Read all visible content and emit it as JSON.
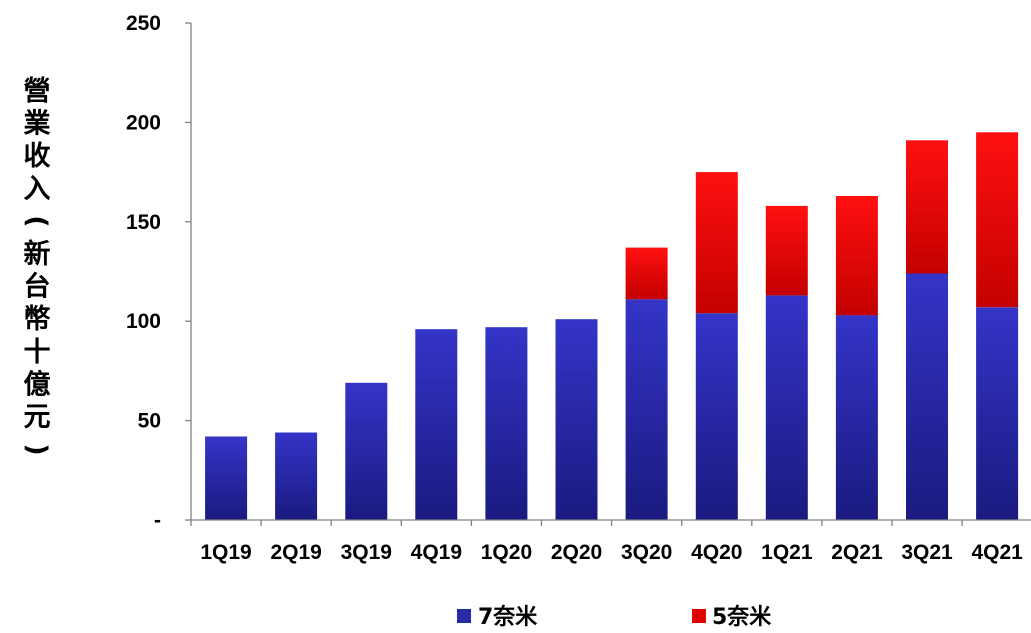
{
  "chart_data": {
    "type": "bar",
    "stacked": true,
    "categories": [
      "1Q19",
      "2Q19",
      "3Q19",
      "4Q19",
      "1Q20",
      "2Q20",
      "3Q20",
      "4Q20",
      "1Q21",
      "2Q21",
      "3Q21",
      "4Q21"
    ],
    "series": [
      {
        "name": "7奈米",
        "color": "#2a2aa8",
        "values": [
          42,
          44,
          69,
          96,
          97,
          101,
          111,
          104,
          113,
          103,
          124,
          107
        ]
      },
      {
        "name": "5奈米",
        "color": "#e00000",
        "values": [
          0,
          0,
          0,
          0,
          0,
          0,
          26,
          71,
          45,
          60,
          67,
          88
        ]
      }
    ],
    "ylabel": "營業收入(新台幣十億元)",
    "ylim": [
      0,
      250
    ],
    "y_ticks": [
      {
        "value": 0,
        "label": "-"
      },
      {
        "value": 50,
        "label": "50"
      },
      {
        "value": 100,
        "label": "100"
      },
      {
        "value": 150,
        "label": "150"
      },
      {
        "value": 200,
        "label": "200"
      },
      {
        "value": 250,
        "label": "250"
      }
    ],
    "grid": false,
    "legend_position": "bottom"
  }
}
